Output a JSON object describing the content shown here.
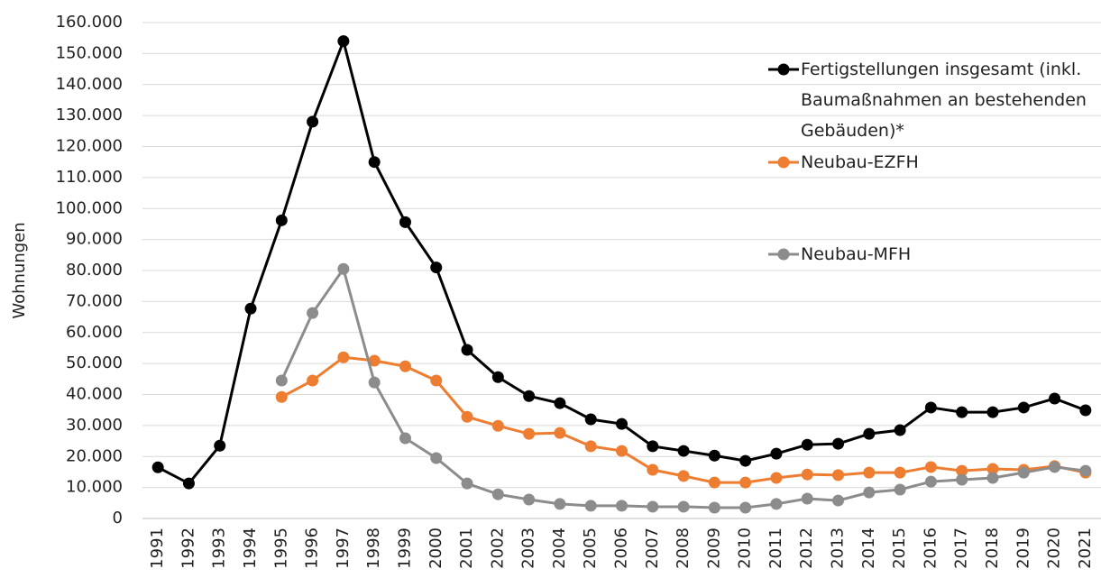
{
  "chart_data": {
    "type": "line",
    "y_label": "Wohnungen",
    "categories": [
      "1991",
      "1992",
      "1993",
      "1994",
      "1995",
      "1996",
      "1997",
      "1998",
      "1999",
      "2000",
      "2001",
      "2002",
      "2003",
      "2004",
      "2005",
      "2006",
      "2007",
      "2008",
      "2009",
      "2010",
      "2011",
      "2012",
      "2013",
      "2014",
      "2015",
      "2016",
      "2017",
      "2018",
      "2019",
      "2020",
      "2021"
    ],
    "series": [
      {
        "name": "Fertigstellungen insgesamt (inkl. Baumaßnahmen an bestehenden Gebäuden)*",
        "color": "#000000",
        "values": [
          16500,
          11300,
          23500,
          67700,
          96200,
          128000,
          154000,
          115000,
          95600,
          81000,
          54400,
          45600,
          39500,
          37200,
          32000,
          30500,
          23300,
          21800,
          20300,
          18600,
          20900,
          23800,
          24100,
          27300,
          28500,
          35800,
          34300,
          34300,
          35800,
          38700,
          34900
        ]
      },
      {
        "name": "Neubau-EZFH",
        "color": "#ed7d31",
        "values": [
          null,
          null,
          null,
          null,
          39200,
          44500,
          52000,
          50900,
          49100,
          44500,
          32800,
          29900,
          27300,
          27600,
          23300,
          21800,
          15700,
          13700,
          11600,
          11600,
          13100,
          14200,
          14000,
          14800,
          14800,
          16600,
          15400,
          16000,
          15700,
          16900,
          14800
        ]
      },
      {
        "name": "Neubau-MFH",
        "color": "#8c8c8c",
        "values": [
          null,
          null,
          null,
          null,
          44500,
          66300,
          80500,
          43900,
          25900,
          19500,
          11300,
          7800,
          6100,
          4700,
          4100,
          4100,
          3800,
          3800,
          3500,
          3500,
          4700,
          6400,
          5800,
          8400,
          9300,
          11900,
          12500,
          13100,
          14800,
          16600,
          15400
        ]
      }
    ],
    "ylim": [
      0,
      160000
    ],
    "yticks": [
      0,
      {
        "value": 10000,
        "label": "10.000"
      },
      {
        "value": 20000,
        "label": "20.000"
      },
      {
        "value": 30000,
        "label": "30.000"
      },
      {
        "value": 40000,
        "label": "40.000"
      },
      {
        "value": 50000,
        "label": "50.000"
      },
      {
        "value": 60000,
        "label": "60.000"
      },
      {
        "value": 70000,
        "label": "70.000"
      },
      {
        "value": 80000,
        "label": "80.000"
      },
      {
        "value": 90000,
        "label": "90.000"
      },
      {
        "value": 100000,
        "label": "100.000"
      },
      {
        "value": 110000,
        "label": "110.000"
      },
      {
        "value": 120000,
        "label": "120.000"
      },
      {
        "value": 130000,
        "label": "130.000"
      },
      {
        "value": 140000,
        "label": "140.000"
      },
      {
        "value": 150000,
        "label": "150.000"
      },
      {
        "value": 160000,
        "label": "160.000"
      }
    ],
    "grid": true,
    "legend": "upper right"
  }
}
